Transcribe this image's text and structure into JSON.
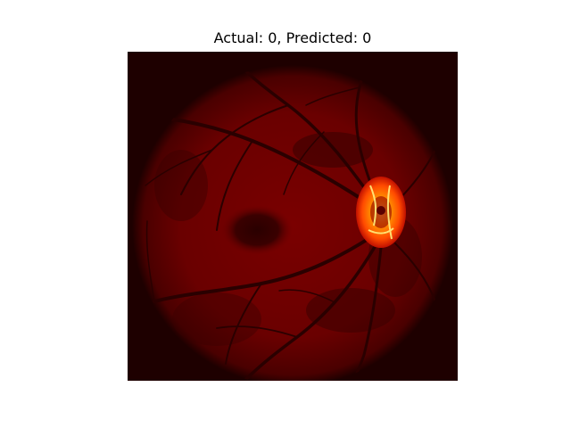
{
  "figure": {
    "title": "Actual: 0, Predicted: 0"
  },
  "image": {
    "description_name": "retinal-fundus-heatmap",
    "colormap": "hot",
    "background_color": "#1e0000",
    "fundus_color": "#6e0000",
    "hotspot_color": "#ff6a00"
  }
}
